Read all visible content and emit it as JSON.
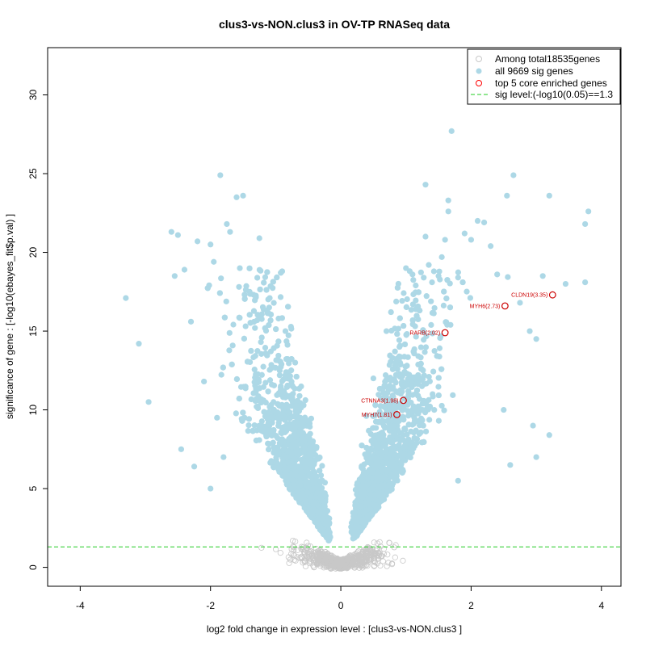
{
  "chart_data": {
    "type": "scatter",
    "title": "clus3-vs-NON.clus3 in OV-TP RNASeq data",
    "xlabel": "log2 fold change in expression level : [clus3-vs-NON.clus3 ]",
    "ylabel": "significance of gene : [-log10(ebayes_fit$p.val) ]",
    "xlim": [
      -4.5,
      4.3
    ],
    "ylim": [
      -1.2,
      33
    ],
    "x_ticks": [
      -4,
      -2,
      0,
      2,
      4
    ],
    "y_ticks": [
      0,
      5,
      10,
      15,
      20,
      25,
      30
    ],
    "grid": false,
    "legend_position": "top-right",
    "legend": [
      {
        "label": "Among total18535genes",
        "marker": "open-circle",
        "color": "#c8c8c8"
      },
      {
        "label": "all 9669 sig genes",
        "marker": "filled-circle",
        "color": "#add8e6"
      },
      {
        "label": "top 5 core enriched genes",
        "marker": "open-circle",
        "color": "#ff0000"
      },
      {
        "label": "sig level:(-log10(0.05)==1.3",
        "marker": "dashed-line",
        "color": "#00cc00"
      }
    ],
    "sig_threshold": 1.3,
    "series": [
      {
        "name": "all 9669 sig genes",
        "note": "dense cloud; representative points",
        "points": [
          [
            -3.3,
            17.1
          ],
          [
            -3.1,
            14.2
          ],
          [
            -2.95,
            10.5
          ],
          [
            -2.6,
            21.3
          ],
          [
            -2.5,
            21.1
          ],
          [
            -2.55,
            18.5
          ],
          [
            -2.4,
            18.9
          ],
          [
            -2.2,
            20.7
          ],
          [
            -2.3,
            15.6
          ],
          [
            -2.45,
            7.5
          ],
          [
            -2.25,
            6.4
          ],
          [
            -2.0,
            20.5
          ],
          [
            -1.95,
            19.4
          ],
          [
            -1.85,
            24.9
          ],
          [
            -1.75,
            21.8
          ],
          [
            -1.7,
            21.3
          ],
          [
            -1.6,
            23.5
          ],
          [
            -1.5,
            23.6
          ],
          [
            -1.55,
            19.0
          ],
          [
            -1.4,
            17.5
          ],
          [
            -1.25,
            20.9
          ],
          [
            -1.1,
            16.5
          ],
          [
            -0.9,
            18.8
          ],
          [
            -0.85,
            15.0
          ],
          [
            -1.3,
            12.0
          ],
          [
            -0.7,
            13.0
          ],
          [
            -2.1,
            11.8
          ],
          [
            -1.9,
            9.5
          ],
          [
            -1.8,
            7.0
          ],
          [
            -2.0,
            5.0
          ],
          [
            1.0,
            19.0
          ],
          [
            1.1,
            18.6
          ],
          [
            1.15,
            17.9
          ],
          [
            1.3,
            21.0
          ],
          [
            1.35,
            19.2
          ],
          [
            1.4,
            18.1
          ],
          [
            1.5,
            18.5
          ],
          [
            1.6,
            20.8
          ],
          [
            1.65,
            23.3
          ],
          [
            1.7,
            27.7
          ],
          [
            1.65,
            22.6
          ],
          [
            1.55,
            19.7
          ],
          [
            1.8,
            18.4
          ],
          [
            1.9,
            21.2
          ],
          [
            2.0,
            20.8
          ],
          [
            2.1,
            22.0
          ],
          [
            2.2,
            21.9
          ],
          [
            2.3,
            20.4
          ],
          [
            2.4,
            18.6
          ],
          [
            2.55,
            23.6
          ],
          [
            2.65,
            24.9
          ],
          [
            2.75,
            16.8
          ],
          [
            2.9,
            15.0
          ],
          [
            3.0,
            14.5
          ],
          [
            3.1,
            18.5
          ],
          [
            3.2,
            23.6
          ],
          [
            3.45,
            18.0
          ],
          [
            3.75,
            21.8
          ],
          [
            3.8,
            22.6
          ],
          [
            3.75,
            18.1
          ],
          [
            1.3,
            24.3
          ],
          [
            0.7,
            15.0
          ],
          [
            0.5,
            12.0
          ],
          [
            0.9,
            14.0
          ],
          [
            2.6,
            6.5
          ],
          [
            3.0,
            7.0
          ],
          [
            3.2,
            8.4
          ],
          [
            2.95,
            9.0
          ],
          [
            2.5,
            10.0
          ],
          [
            1.8,
            5.5
          ]
        ]
      },
      {
        "name": "top 5 core enriched genes",
        "points": [
          {
            "gene": "CLDN19(3.35)",
            "x": 3.25,
            "y": 17.3
          },
          {
            "gene": "MYH6(2.73)",
            "x": 2.52,
            "y": 16.6
          },
          {
            "gene": "RARB(2.02)",
            "x": 1.6,
            "y": 14.9
          },
          {
            "gene": "CTNNA3(1.98)",
            "x": 0.96,
            "y": 10.6
          },
          {
            "gene": "MYH7(1.81)",
            "x": 0.86,
            "y": 9.7
          }
        ]
      }
    ]
  }
}
